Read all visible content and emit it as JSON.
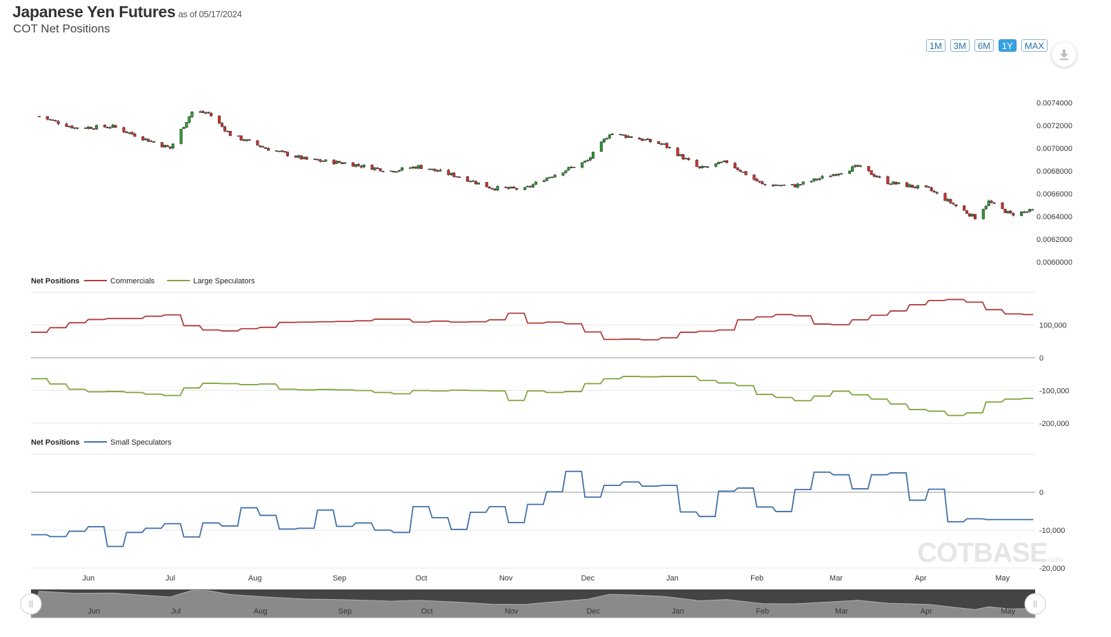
{
  "header": {
    "title": "Japanese Yen Futures",
    "as_of": "as of 05/17/2024",
    "subtitle": "COT Net Positions"
  },
  "range_buttons": [
    {
      "label": "1M",
      "active": false
    },
    {
      "label": "3M",
      "active": false
    },
    {
      "label": "6M",
      "active": false
    },
    {
      "label": "1Y",
      "active": true
    },
    {
      "label": "MAX",
      "active": false
    }
  ],
  "download_icon": "download-icon",
  "watermark": {
    "main": "COTBASE",
    "suffix": ".com"
  },
  "colors": {
    "up": "#2e9b35",
    "down": "#d32f2f",
    "commercials": "#b23a3a",
    "large_speculators": "#7fa33c",
    "small_speculators": "#3f6fa8",
    "navigator_fill": "#8a8a8a",
    "navigator_bg": "#444444"
  },
  "chart_data": [
    {
      "type": "candlestick",
      "title": "",
      "ylim": [
        0.006,
        0.0074
      ],
      "y_ticks": [
        "0.0060000",
        "0.0062000",
        "0.0064000",
        "0.0066000",
        "0.0068000",
        "0.0070000",
        "0.0072000",
        "0.0074000"
      ],
      "x_ticks": [
        "Jun",
        "Jul",
        "Aug",
        "Sep",
        "Oct",
        "Nov",
        "Dec",
        "Jan",
        "Feb",
        "Mar",
        "Apr",
        "May"
      ],
      "close_series": {
        "name": "",
        "x": [
          "2023-05-19",
          "2023-06-01",
          "2023-06-15",
          "2023-06-28",
          "2023-07-06",
          "2023-07-14",
          "2023-07-20",
          "2023-07-28",
          "2023-08-10",
          "2023-08-25",
          "2023-09-08",
          "2023-09-25",
          "2023-10-05",
          "2023-10-20",
          "2023-11-01",
          "2023-11-13",
          "2023-11-20",
          "2023-11-29",
          "2023-12-06",
          "2023-12-14",
          "2023-12-22",
          "2024-01-03",
          "2024-01-16",
          "2024-01-26",
          "2024-02-08",
          "2024-02-20",
          "2024-03-05",
          "2024-03-14",
          "2024-03-25",
          "2024-04-09",
          "2024-04-26",
          "2024-05-01",
          "2024-05-09",
          "2024-05-17"
        ],
        "values": [
          0.00728,
          0.00718,
          0.00719,
          0.00707,
          0.007,
          0.00732,
          0.00731,
          0.00712,
          0.007,
          0.0069,
          0.00687,
          0.0068,
          0.00684,
          0.00675,
          0.00665,
          0.00664,
          0.00673,
          0.00682,
          0.00689,
          0.00713,
          0.0071,
          0.00703,
          0.00682,
          0.00688,
          0.00668,
          0.00667,
          0.00677,
          0.00684,
          0.0067,
          0.00664,
          0.00639,
          0.00653,
          0.00642,
          0.00645
        ]
      }
    },
    {
      "type": "line",
      "legend_title": "Net Positions",
      "y_ticks": [
        "100,000",
        "0",
        "-100,000",
        "-200,000"
      ],
      "ylim": [
        -200000,
        200000
      ],
      "series": [
        {
          "name": "Commercials",
          "x": [
            "2023-05-16",
            "2023-05-23",
            "2023-05-30",
            "2023-06-06",
            "2023-06-13",
            "2023-06-20",
            "2023-06-27",
            "2023-07-04",
            "2023-07-11",
            "2023-07-18",
            "2023-07-25",
            "2023-08-01",
            "2023-08-08",
            "2023-08-15",
            "2023-08-22",
            "2023-08-29",
            "2023-09-05",
            "2023-09-12",
            "2023-09-19",
            "2023-09-26",
            "2023-10-03",
            "2023-10-10",
            "2023-10-17",
            "2023-10-24",
            "2023-10-31",
            "2023-11-07",
            "2023-11-14",
            "2023-11-21",
            "2023-11-28",
            "2023-12-05",
            "2023-12-12",
            "2023-12-19",
            "2023-12-26",
            "2024-01-02",
            "2024-01-09",
            "2024-01-16",
            "2024-01-23",
            "2024-01-30",
            "2024-02-06",
            "2024-02-13",
            "2024-02-20",
            "2024-02-27",
            "2024-03-05",
            "2024-03-12",
            "2024-03-19",
            "2024-03-26",
            "2024-04-02",
            "2024-04-09",
            "2024-04-16",
            "2024-04-23",
            "2024-04-30",
            "2024-05-07",
            "2024-05-14"
          ],
          "values": [
            78000,
            92000,
            107000,
            117000,
            120000,
            120000,
            127000,
            131000,
            98000,
            85000,
            82000,
            89000,
            93000,
            108000,
            109000,
            110000,
            111000,
            113000,
            118000,
            118000,
            109000,
            112000,
            109000,
            110000,
            116000,
            136000,
            106000,
            109000,
            104000,
            79000,
            56000,
            57000,
            55000,
            61000,
            78000,
            81000,
            85000,
            116000,
            125000,
            132000,
            128000,
            103000,
            101000,
            116000,
            130000,
            143000,
            162000,
            175000,
            178000,
            170000,
            147000,
            134000,
            132000
          ]
        },
        {
          "name": "Large Speculators",
          "x": [
            "2023-05-16",
            "2023-05-23",
            "2023-05-30",
            "2023-06-06",
            "2023-06-13",
            "2023-06-20",
            "2023-06-27",
            "2023-07-04",
            "2023-07-11",
            "2023-07-18",
            "2023-07-25",
            "2023-08-01",
            "2023-08-08",
            "2023-08-15",
            "2023-08-22",
            "2023-08-29",
            "2023-09-05",
            "2023-09-12",
            "2023-09-19",
            "2023-09-26",
            "2023-10-03",
            "2023-10-10",
            "2023-10-17",
            "2023-10-24",
            "2023-10-31",
            "2023-11-07",
            "2023-11-14",
            "2023-11-21",
            "2023-11-28",
            "2023-12-05",
            "2023-12-12",
            "2023-12-19",
            "2023-12-26",
            "2024-01-02",
            "2024-01-09",
            "2024-01-16",
            "2024-01-23",
            "2024-01-30",
            "2024-02-06",
            "2024-02-13",
            "2024-02-20",
            "2024-02-27",
            "2024-03-05",
            "2024-03-12",
            "2024-03-19",
            "2024-03-26",
            "2024-04-02",
            "2024-04-09",
            "2024-04-16",
            "2024-04-23",
            "2024-04-30",
            "2024-05-07",
            "2024-05-14"
          ],
          "values": [
            -64000,
            -80000,
            -96000,
            -104000,
            -103000,
            -106000,
            -111000,
            -115000,
            -92000,
            -78000,
            -79000,
            -82000,
            -80000,
            -96000,
            -98000,
            -97000,
            -98000,
            -100000,
            -106000,
            -110000,
            -100000,
            -101000,
            -99000,
            -100000,
            -101000,
            -130000,
            -101000,
            -106000,
            -103000,
            -79000,
            -64000,
            -57000,
            -58000,
            -57000,
            -57000,
            -69000,
            -77000,
            -85000,
            -112000,
            -121000,
            -131000,
            -117000,
            -102000,
            -113000,
            -126000,
            -141000,
            -158000,
            -163000,
            -176000,
            -168000,
            -135000,
            -126000,
            -124000
          ]
        }
      ]
    },
    {
      "type": "line",
      "legend_title": "Net Positions",
      "y_ticks": [
        "0",
        "-10,000",
        "-20,000"
      ],
      "ylim": [
        -20000,
        10000
      ],
      "series": [
        {
          "name": "Small Speculators",
          "x": [
            "2023-05-16",
            "2023-05-23",
            "2023-05-30",
            "2023-06-06",
            "2023-06-13",
            "2023-06-20",
            "2023-06-27",
            "2023-07-04",
            "2023-07-11",
            "2023-07-18",
            "2023-07-25",
            "2023-08-01",
            "2023-08-08",
            "2023-08-15",
            "2023-08-22",
            "2023-08-29",
            "2023-09-05",
            "2023-09-12",
            "2023-09-19",
            "2023-09-26",
            "2023-10-03",
            "2023-10-10",
            "2023-10-17",
            "2023-10-24",
            "2023-10-31",
            "2023-11-07",
            "2023-11-14",
            "2023-11-21",
            "2023-11-28",
            "2023-12-05",
            "2023-12-12",
            "2023-12-19",
            "2023-12-26",
            "2024-01-02",
            "2024-01-09",
            "2024-01-16",
            "2024-01-23",
            "2024-01-30",
            "2024-02-06",
            "2024-02-13",
            "2024-02-20",
            "2024-02-27",
            "2024-03-05",
            "2024-03-12",
            "2024-03-19",
            "2024-03-26",
            "2024-04-02",
            "2024-04-09",
            "2024-04-16",
            "2024-04-23",
            "2024-04-30",
            "2024-05-07",
            "2024-05-14"
          ],
          "values": [
            -11200,
            -11700,
            -10300,
            -9100,
            -14300,
            -10600,
            -9500,
            -8300,
            -11800,
            -8100,
            -8900,
            -4100,
            -6100,
            -9700,
            -9500,
            -4700,
            -9000,
            -8100,
            -10000,
            -10600,
            -3800,
            -6700,
            -9800,
            -5300,
            -3800,
            -8000,
            -3200,
            100,
            5500,
            -1300,
            1800,
            2700,
            1600,
            1800,
            -5200,
            -6400,
            300,
            1100,
            -3900,
            -5100,
            700,
            5300,
            4600,
            900,
            4600,
            5100,
            -2100,
            800,
            -7800,
            -7000,
            -7200,
            -7200,
            -7200
          ]
        }
      ]
    }
  ],
  "navigator": {
    "x_ticks": [
      "Jun",
      "Jul",
      "Aug",
      "Sep",
      "Oct",
      "Nov",
      "Dec",
      "Jan",
      "Feb",
      "Mar",
      "Apr",
      "May"
    ]
  }
}
